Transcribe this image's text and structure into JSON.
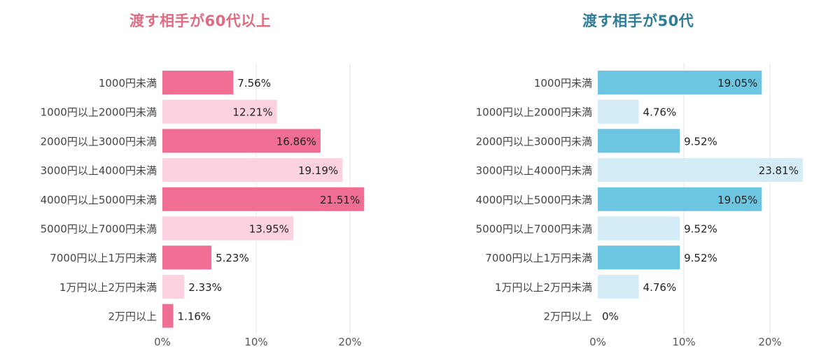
{
  "chart_data": [
    {
      "type": "bar",
      "orientation": "horizontal",
      "title": "渡す相手が60代以上",
      "title_color": "#e06b82",
      "bar_color_strong": "#f06d93",
      "bar_color_light": "#fbd2de",
      "categories": [
        "1000円未満",
        "1000円以上2000円未満",
        "2000円以上3000円未満",
        "3000円以上4000円未満",
        "4000円以上5000円未満",
        "5000円以上7000円未満",
        "7000円以上1万円未満",
        "1万円以上2万円未満",
        "2万円以上"
      ],
      "values": [
        7.56,
        12.21,
        16.86,
        19.19,
        21.51,
        13.95,
        5.23,
        2.33,
        1.16
      ],
      "value_labels": [
        "7.56%",
        "12.21%",
        "16.86%",
        "19.19%",
        "21.51%",
        "13.95%",
        "5.23%",
        "2.33%",
        "1.16%"
      ],
      "xlim": [
        0,
        20
      ],
      "xticks": [
        "0%",
        "10%",
        "20%"
      ],
      "grid": true
    },
    {
      "type": "bar",
      "orientation": "horizontal",
      "title": "渡す相手が50代",
      "title_color": "#2f7c97",
      "bar_color_strong": "#6cc5e1",
      "bar_color_light": "#d3ecf6",
      "categories": [
        "1000円未満",
        "1000円以上2000円未満",
        "2000円以上3000円未満",
        "3000円以上4000円未満",
        "4000円以上5000円未満",
        "5000円以上7000円未満",
        "7000円以上1万円未満",
        "1万円以上2万円未満",
        "2万円以上"
      ],
      "values": [
        19.05,
        4.76,
        9.52,
        23.81,
        19.05,
        9.52,
        9.52,
        4.76,
        0
      ],
      "value_labels": [
        "19.05%",
        "4.76%",
        "9.52%",
        "23.81%",
        "19.05%",
        "9.52%",
        "9.52%",
        "4.76%",
        "0%"
      ],
      "xlim": [
        0,
        20
      ],
      "xticks": [
        "0%",
        "10%",
        "20%"
      ],
      "grid": true
    }
  ]
}
